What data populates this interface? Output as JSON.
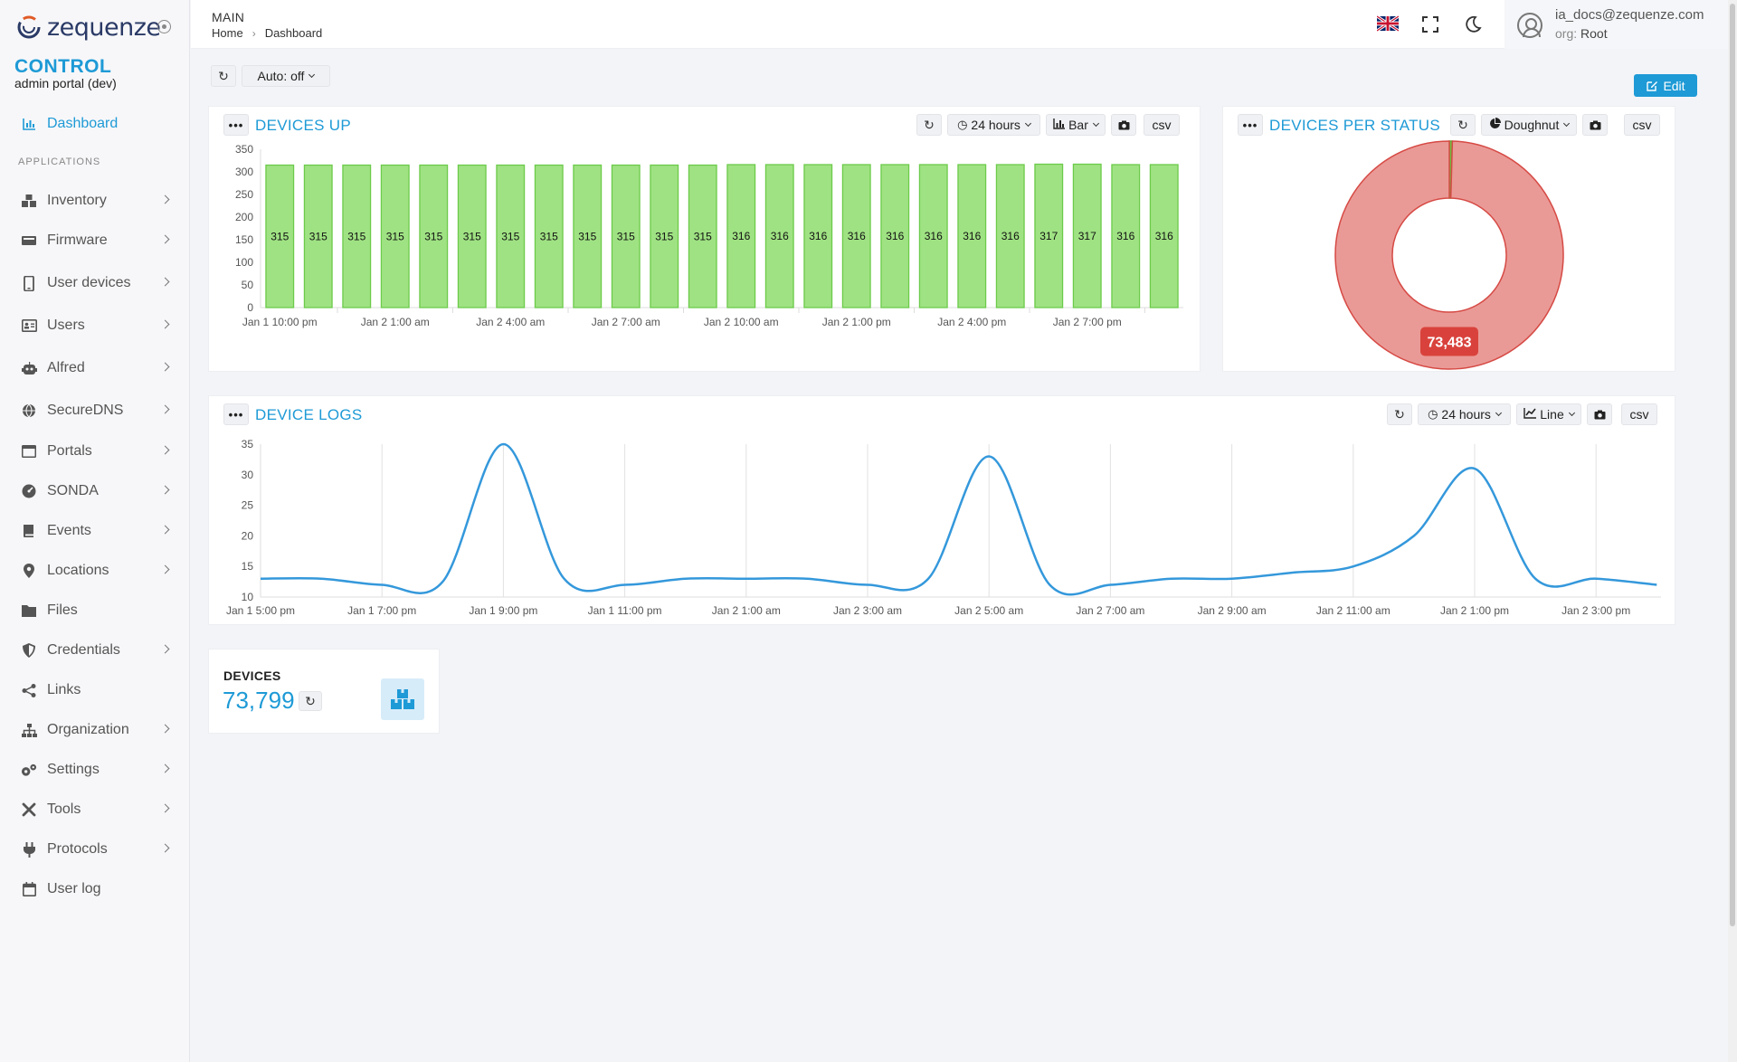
{
  "app": {
    "logo_text": "zequenze",
    "brand_title": "CONTROL",
    "brand_subtitle": "admin portal (dev)"
  },
  "sidebar": {
    "section_label": "APPLICATIONS",
    "dashboard_label": "Dashboard",
    "items": [
      {
        "label": "Inventory",
        "icon": "boxes-icon",
        "has_children": true
      },
      {
        "label": "Firmware",
        "icon": "firmware-icon",
        "has_children": true
      },
      {
        "label": "User devices",
        "icon": "mobile-icon",
        "has_children": true
      },
      {
        "label": "Users",
        "icon": "id-card-icon",
        "has_children": true
      },
      {
        "label": "Alfred",
        "icon": "robot-icon",
        "has_children": true
      },
      {
        "label": "SecureDNS",
        "icon": "globe-icon",
        "has_children": true
      },
      {
        "label": "Portals",
        "icon": "window-icon",
        "has_children": true
      },
      {
        "label": "SONDA",
        "icon": "gauge-icon",
        "has_children": true
      },
      {
        "label": "Events",
        "icon": "book-icon",
        "has_children": true
      },
      {
        "label": "Locations",
        "icon": "map-pin-icon",
        "has_children": true
      },
      {
        "label": "Files",
        "icon": "folder-icon",
        "has_children": false
      },
      {
        "label": "Credentials",
        "icon": "shield-icon",
        "has_children": true
      },
      {
        "label": "Links",
        "icon": "share-icon",
        "has_children": false
      },
      {
        "label": "Organization",
        "icon": "sitemap-icon",
        "has_children": true
      },
      {
        "label": "Settings",
        "icon": "gears-icon",
        "has_children": true
      },
      {
        "label": "Tools",
        "icon": "tools-icon",
        "has_children": true
      },
      {
        "label": "Protocols",
        "icon": "plug-icon",
        "has_children": true
      },
      {
        "label": "User log",
        "icon": "calendar-icon",
        "has_children": false
      }
    ]
  },
  "header": {
    "section": "MAIN",
    "breadcrumb_home": "Home",
    "breadcrumb_current": "Dashboard",
    "user_email": "ia_docs@zequenze.com",
    "org_label": "org:",
    "org_value": "Root"
  },
  "toolbar": {
    "auto_label": "Auto: off",
    "edit_label": "Edit"
  },
  "devices_up": {
    "title": "DEVICES UP",
    "range_label": "24 hours",
    "type_label": "Bar",
    "csv_label": "csv",
    "colors": {
      "bar_fill": "#9fe283",
      "bar_stroke": "#6ccb4a"
    },
    "chart_data": {
      "type": "bar",
      "values": [
        315,
        315,
        315,
        315,
        315,
        315,
        315,
        315,
        315,
        315,
        315,
        315,
        316,
        316,
        316,
        316,
        316,
        316,
        316,
        316,
        317,
        317,
        316,
        316
      ],
      "x_tick_labels": [
        "Jan 1 10:00 pm",
        "Jan 2 1:00 am",
        "Jan 2 4:00 am",
        "Jan 2 7:00 am",
        "Jan 2 10:00 am",
        "Jan 2 1:00 pm",
        "Jan 2 4:00 pm",
        "Jan 2 7:00 pm"
      ],
      "y_ticks": [
        0,
        50,
        100,
        150,
        200,
        250,
        300,
        350
      ],
      "ylim": [
        0,
        350
      ]
    }
  },
  "devices_per_status": {
    "title": "DEVICES PER STATUS",
    "type_label": "Doughnut",
    "csv_label": "csv",
    "chart_data": {
      "type": "pie",
      "slices": [
        {
          "value": 316,
          "color": "#6fbf3f"
        },
        {
          "value": 73483,
          "color": "#ea9a96"
        }
      ],
      "data_label": "73,483",
      "data_label_color": "#d9423c"
    }
  },
  "device_logs": {
    "title": "DEVICE LOGS",
    "range_label": "24 hours",
    "type_label": "Line",
    "csv_label": "csv",
    "chart_data": {
      "type": "line",
      "line_color": "#3498db",
      "x_tick_labels": [
        "Jan 1 5:00 pm",
        "Jan 1 7:00 pm",
        "Jan 1 9:00 pm",
        "Jan 1 11:00 pm",
        "Jan 2 1:00 am",
        "Jan 2 3:00 am",
        "Jan 2 5:00 am",
        "Jan 2 7:00 am",
        "Jan 2 9:00 am",
        "Jan 2 11:00 am",
        "Jan 2 1:00 pm",
        "Jan 2 3:00 pm"
      ],
      "y_ticks": [
        10,
        15,
        20,
        25,
        30,
        35
      ],
      "ylim": [
        10,
        35
      ],
      "hours_per_step": 1,
      "values": [
        13,
        13,
        12,
        12.5,
        35,
        13,
        12,
        13,
        13,
        13,
        12,
        13,
        33,
        12,
        12,
        13,
        13,
        14,
        15,
        20,
        31,
        13,
        13,
        12
      ]
    }
  },
  "devices_card": {
    "title": "DEVICES",
    "count": "73,799"
  }
}
